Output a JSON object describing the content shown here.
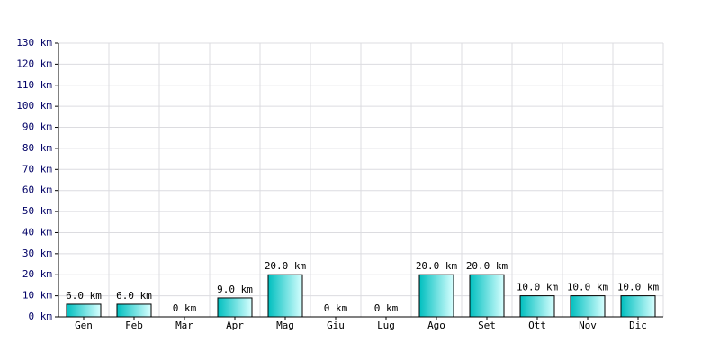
{
  "chart_data": {
    "type": "bar",
    "categories": [
      "Gen",
      "Feb",
      "Mar",
      "Apr",
      "Mag",
      "Giu",
      "Lug",
      "Ago",
      "Set",
      "Ott",
      "Nov",
      "Dic"
    ],
    "values": [
      6,
      6,
      0,
      9,
      20,
      0,
      0,
      20,
      20,
      10,
      10,
      10
    ],
    "value_labels": [
      "6.0 km",
      "6.0 km",
      "0 km",
      "9.0 km",
      "20.0 km",
      "0 km",
      "0 km",
      "20.0 km",
      "20.0 km",
      "10.0 km",
      "10.0 km",
      "10.0 km"
    ],
    "color": "#00bfbf",
    "ylim": [
      0,
      130
    ],
    "yticks": [
      {
        "value": 0,
        "label": "0 km"
      },
      {
        "value": 10,
        "label": "10 km"
      },
      {
        "value": 20,
        "label": "20 km"
      },
      {
        "value": 30,
        "label": "30 km"
      },
      {
        "value": 40,
        "label": "40 km"
      },
      {
        "value": 50,
        "label": "50 km"
      },
      {
        "value": 60,
        "label": "60 km"
      },
      {
        "value": 70,
        "label": "70 km"
      },
      {
        "value": 80,
        "label": "80 km"
      },
      {
        "value": 90,
        "label": "90 km"
      },
      {
        "value": 100,
        "label": "100 km"
      },
      {
        "value": 110,
        "label": "110 km"
      },
      {
        "value": 120,
        "label": "120 km"
      },
      {
        "value": 130,
        "label": "130 km"
      }
    ],
    "grid": true
  }
}
